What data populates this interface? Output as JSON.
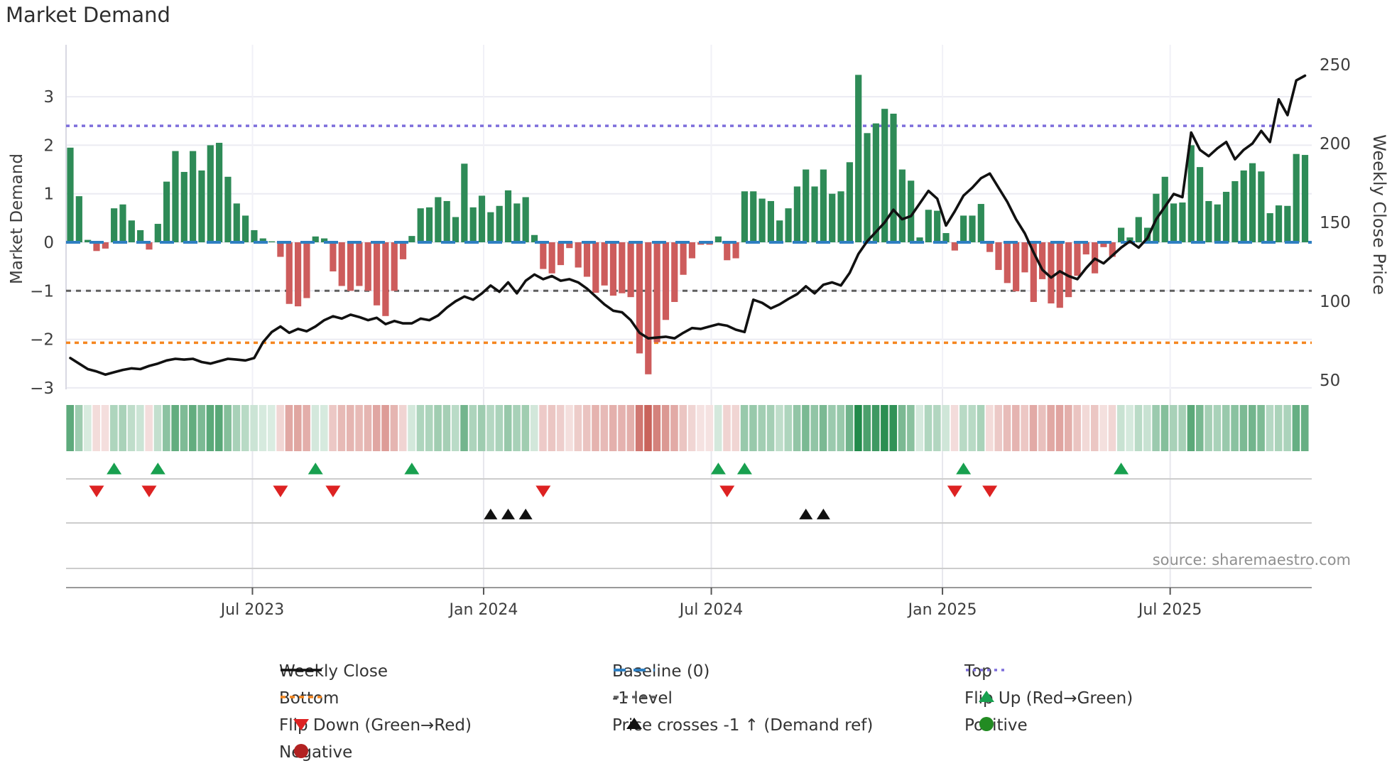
{
  "title": "Market Demand",
  "left_axis_title": "Market Demand",
  "right_axis_title": "Weekly Close Price",
  "source_credit": "source: sharemaestro.com",
  "colors": {
    "bar_positive": "#2e8b57",
    "bar_negative": "#cd5c5c",
    "price_line": "#111111",
    "baseline": "#2f7fc1",
    "top_line": "#7d6edb",
    "bottom_line": "#f5861f",
    "minus_one_line": "#5f5f5f",
    "flip_up": "#18a04f",
    "flip_down": "#dd2222",
    "price_cross": "#111111",
    "positive_dot": "#228b22",
    "negative_dot": "#b22222",
    "grid": "#ebebf2",
    "lane_line": "#cccccc",
    "axis_line": "#999999",
    "tick_text": "#3d3d3d",
    "heat_green": [
      33,
      138,
      74
    ],
    "heat_red": [
      198,
      90,
      82
    ]
  },
  "chart_data": {
    "type": [
      "bar",
      "line"
    ],
    "start_date": "2023-02-03",
    "frequency": "weekly",
    "n_weeks": 142,
    "title": "Market Demand",
    "demand_axis": {
      "label": "Market Demand",
      "ticks": [
        3,
        2,
        1,
        0,
        -1,
        -2,
        -3
      ],
      "range": [
        -3.03,
        4.07
      ],
      "grid": true
    },
    "price_axis": {
      "label": "Weekly Close Price",
      "ticks": [
        250,
        200,
        150,
        100,
        50
      ],
      "range": [
        44,
        262
      ]
    },
    "x_ticks": [
      {
        "label": "Jul 2023",
        "week": 20.8
      },
      {
        "label": "Jan 2024",
        "week": 47.2
      },
      {
        "label": "Jul 2024",
        "week": 73.2
      },
      {
        "label": "Jan 2025",
        "week": 99.6
      },
      {
        "label": "Jul 2025",
        "week": 125.6
      }
    ],
    "reference_lines": {
      "top": 2.4,
      "baseline": 0,
      "minus_one": -1,
      "bottom": -2.07
    },
    "series": [
      {
        "name": "Market Demand",
        "type": "bar",
        "values": [
          1.95,
          0.95,
          0.05,
          -0.18,
          -0.13,
          0.7,
          0.78,
          0.45,
          0.25,
          -0.15,
          0.38,
          1.25,
          1.88,
          1.45,
          1.88,
          1.48,
          2.0,
          2.05,
          1.35,
          0.8,
          0.55,
          0.25,
          0.08,
          0.02,
          -0.3,
          -1.27,
          -1.32,
          -1.15,
          0.12,
          0.08,
          -0.6,
          -0.9,
          -1.0,
          -0.9,
          -1.0,
          -1.3,
          -1.52,
          -1.0,
          -0.35,
          0.13,
          0.7,
          0.72,
          0.93,
          0.85,
          0.52,
          1.62,
          0.72,
          0.96,
          0.62,
          0.75,
          1.07,
          0.8,
          0.93,
          0.15,
          -0.55,
          -0.64,
          -0.47,
          -0.12,
          -0.52,
          -0.71,
          -1.04,
          -0.89,
          -1.1,
          -1.05,
          -1.13,
          -2.29,
          -2.72,
          -2.06,
          -1.6,
          -1.23,
          -0.67,
          -0.33,
          -0.05,
          -0.05,
          0.12,
          -0.37,
          -0.33,
          1.05,
          1.05,
          0.9,
          0.85,
          0.45,
          0.7,
          1.15,
          1.5,
          1.15,
          1.5,
          1.0,
          1.05,
          1.65,
          3.45,
          2.25,
          2.45,
          2.75,
          2.65,
          1.5,
          1.27,
          0.1,
          0.67,
          0.65,
          0.19,
          -0.17,
          0.55,
          0.55,
          0.79,
          -0.2,
          -0.57,
          -0.84,
          -1.01,
          -0.62,
          -1.23,
          -0.76,
          -1.26,
          -1.35,
          -1.13,
          -0.69,
          -0.25,
          -0.64,
          -0.1,
          -0.3,
          0.3,
          0.1,
          0.52,
          0.3,
          1.0,
          1.35,
          0.8,
          0.82,
          2.0,
          1.55,
          0.85,
          0.78,
          1.04,
          1.26,
          1.48,
          1.63,
          1.46,
          0.6,
          0.76,
          0.75,
          1.82,
          1.8
        ]
      },
      {
        "name": "Weekly Close",
        "type": "line",
        "values": [
          64,
          60.5,
          57,
          55.5,
          53.5,
          55,
          56.5,
          57.5,
          57,
          59,
          60.5,
          62.5,
          63.5,
          63,
          63.5,
          61.5,
          60.5,
          62,
          63.5,
          63,
          62.5,
          64,
          74,
          80.5,
          84,
          80,
          82.5,
          81,
          84,
          88,
          90.5,
          89,
          91.5,
          90,
          88,
          89.5,
          85.5,
          87.5,
          86,
          86,
          89,
          88,
          91,
          96,
          100,
          103,
          101,
          105,
          110,
          106,
          112,
          105,
          113,
          117,
          114,
          116,
          113,
          114,
          112,
          108,
          103,
          98,
          94,
          93,
          88,
          80,
          76.5,
          77,
          77.5,
          76.5,
          80,
          83,
          82.5,
          84,
          85.5,
          84.5,
          82,
          80.5,
          101,
          99,
          95.5,
          98,
          101.5,
          104.5,
          109.5,
          105,
          110.5,
          112,
          110,
          118,
          130,
          138,
          144,
          150,
          158,
          152,
          154,
          162,
          170,
          165,
          148,
          157,
          167,
          172,
          178,
          181,
          172,
          163,
          152,
          143,
          131,
          120,
          115,
          119,
          116,
          114,
          121,
          127,
          124,
          129,
          134,
          138,
          134,
          140,
          152,
          160,
          168,
          166,
          207,
          196,
          192,
          197,
          201,
          190,
          196,
          200,
          208,
          201,
          228,
          218,
          240,
          243
        ]
      }
    ],
    "markers": {
      "flip_up_weeks": [
        5,
        10,
        28,
        39,
        74,
        77,
        102,
        120
      ],
      "flip_down_weeks": [
        3,
        9,
        24,
        30,
        54,
        75,
        101,
        105
      ],
      "price_cross_weeks": [
        48,
        50,
        52,
        84,
        86
      ]
    },
    "heatmap": {
      "note": "weekly strip shaded by Market Demand sign and magnitude"
    }
  },
  "legend": {
    "columns": [
      {
        "items": [
          {
            "label": "Weekly Close",
            "swatch": "solid-line",
            "color_key": "price_line"
          },
          {
            "label": "Bottom",
            "swatch": "dashed-line",
            "color_key": "bottom_line"
          },
          {
            "label": "Flip Down (Green→Red)",
            "swatch": "triangle-down",
            "color_key": "flip_down"
          },
          {
            "label": "Negative",
            "swatch": "circle",
            "color_key": "negative_dot"
          }
        ]
      },
      {
        "items": [
          {
            "label": "Baseline (0)",
            "swatch": "longdash-line",
            "color_key": "baseline"
          },
          {
            "label": "-1 level",
            "swatch": "dashed-line",
            "color_key": "minus_one_line"
          },
          {
            "label": "Price crosses -1 ↑ (Demand ref)",
            "swatch": "triangle-up",
            "color_key": "price_cross"
          }
        ]
      },
      {
        "items": [
          {
            "label": "Top",
            "swatch": "dotted-line",
            "color_key": "top_line"
          },
          {
            "label": "Flip Up (Red→Green)",
            "swatch": "triangle-up",
            "color_key": "flip_up"
          },
          {
            "label": "Positive",
            "swatch": "circle",
            "color_key": "positive_dot"
          }
        ]
      }
    ]
  }
}
